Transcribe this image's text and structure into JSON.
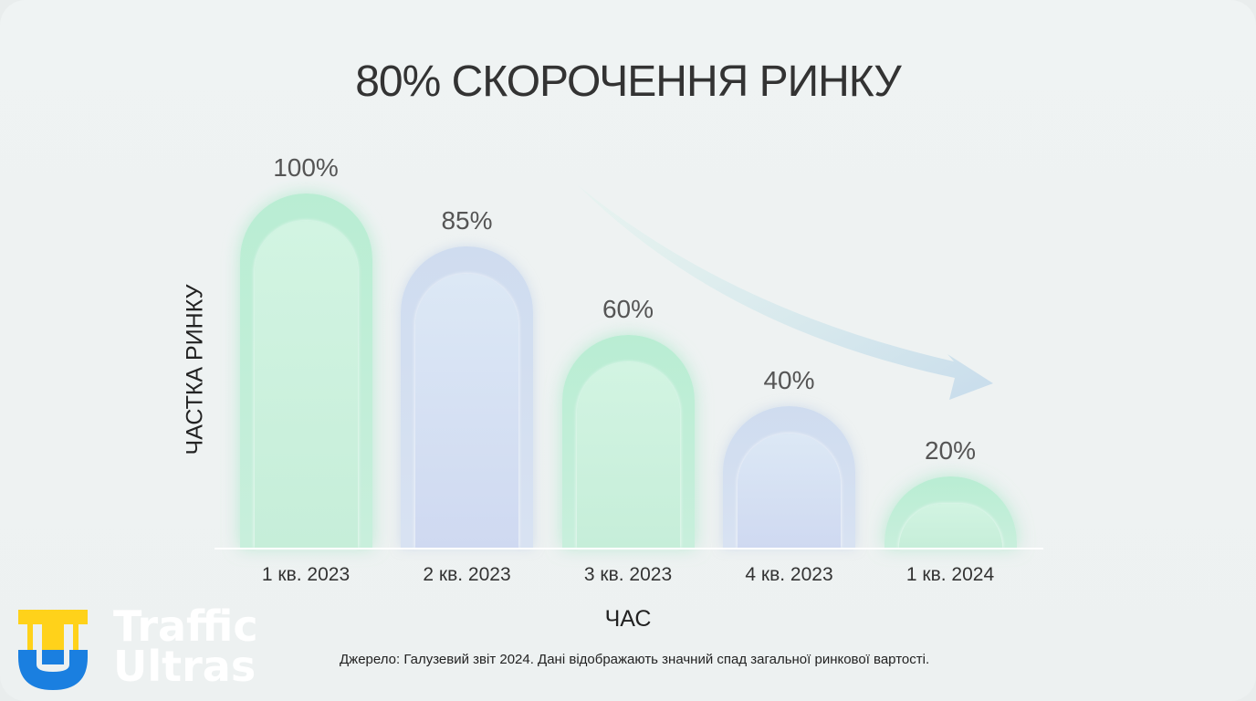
{
  "chart_data": {
    "type": "bar",
    "title": "80% СКОРОЧЕННЯ РИНКУ",
    "xlabel": "ЧАС",
    "ylabel": "ЧАСТКА РИНКУ",
    "categories": [
      "1 кв. 2023",
      "2 кв. 2023",
      "3 кв. 2023",
      "4 кв. 2023",
      "1 кв. 2024"
    ],
    "values": [
      100,
      85,
      60,
      40,
      20
    ],
    "data_labels": [
      "100%",
      "85%",
      "60%",
      "40%",
      "20%"
    ],
    "bar_colors": [
      "green",
      "blue",
      "green",
      "blue",
      "green"
    ],
    "colors": {
      "green": "#bfeed6",
      "blue": "#d3dff1"
    },
    "ylim": [
      0,
      100
    ],
    "grid": false,
    "annotation": "downward-trend-arrow"
  },
  "source": "Джерело: Галузевий звіт 2024. Дані відображають значний спад загальної ринкової вартості.",
  "logo": {
    "text_line1": "Traffic",
    "text_line2": "Ultras",
    "colors": {
      "yellow": "#ffd21a",
      "blue": "#1a7fe0"
    }
  }
}
